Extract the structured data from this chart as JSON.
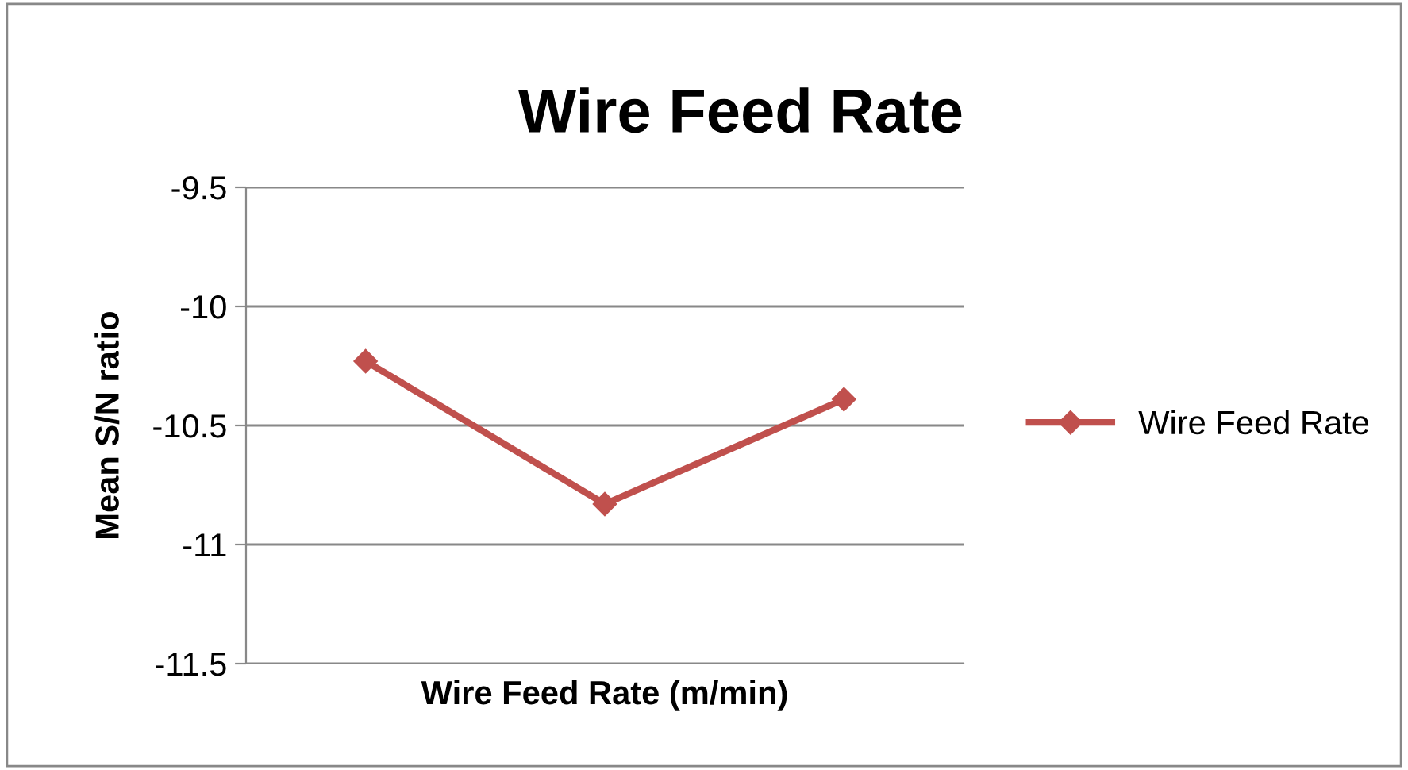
{
  "chart_data": {
    "type": "line",
    "title": "Wire Feed Rate",
    "xlabel": "Wire Feed Rate (m/min)",
    "ylabel": "Mean S/N ratio",
    "categories": [
      null,
      null,
      null
    ],
    "series": [
      {
        "name": "Wire Feed Rate",
        "color": "#c0504d",
        "values": [
          -10.23,
          -10.83,
          -10.39
        ]
      }
    ],
    "ylim": [
      -11.5,
      -9.5
    ],
    "yticks": [
      -11.5,
      -11,
      -10.5,
      -10,
      -9.5
    ],
    "grid": "y",
    "legend": "right",
    "marker": "diamond",
    "line_style": "solid"
  }
}
